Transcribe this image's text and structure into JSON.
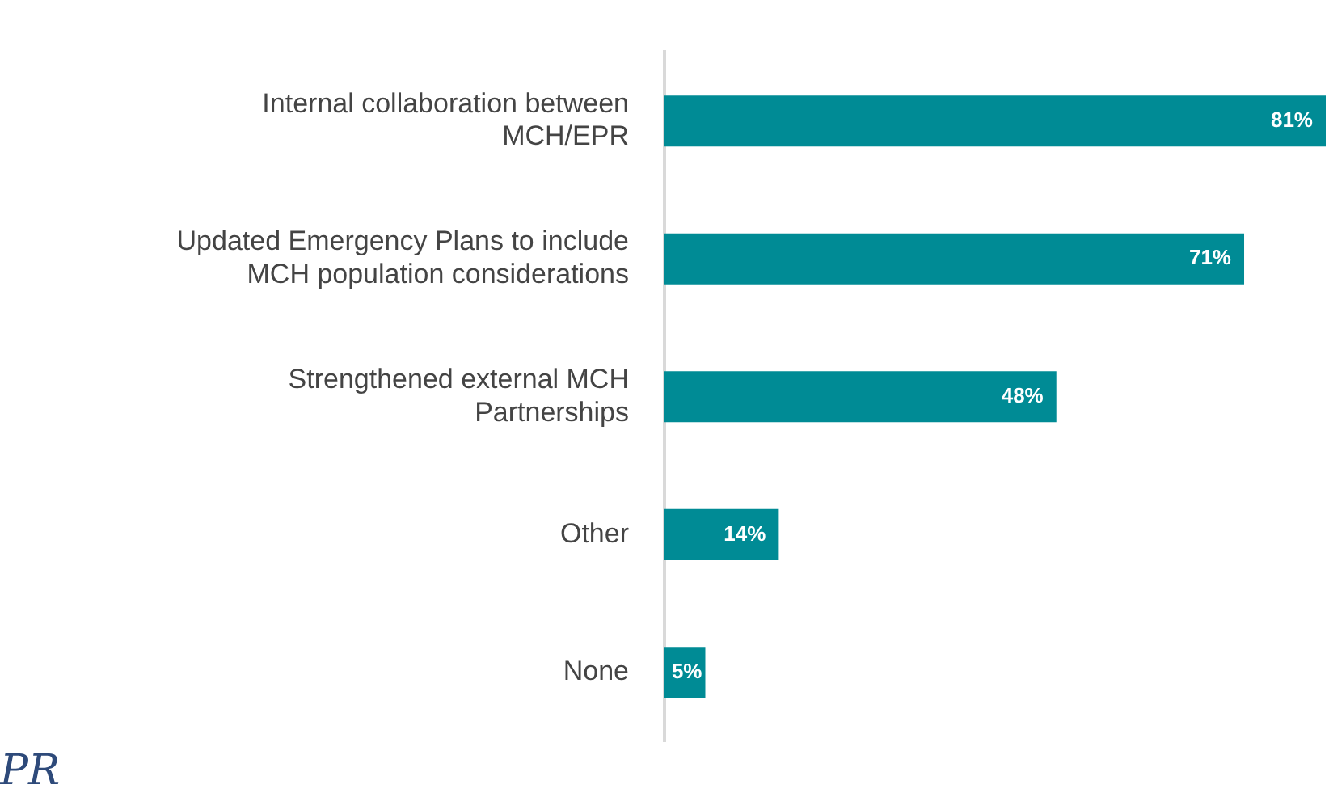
{
  "chart_data": {
    "type": "bar",
    "orientation": "horizontal",
    "categories": [
      "Internal collaboration between MCH/EPR",
      "Updated Emergency Plans to include MCH population considerations",
      "Strengthened external MCH Partnerships",
      "Other",
      "None"
    ],
    "values": [
      81,
      71,
      48,
      14,
      5
    ],
    "color": "#008b95",
    "data_labels": true,
    "value_labels": [
      "81%",
      "71%",
      "48%",
      "14%",
      "5%"
    ],
    "legend": false,
    "annotations": [
      "PR"
    ]
  }
}
